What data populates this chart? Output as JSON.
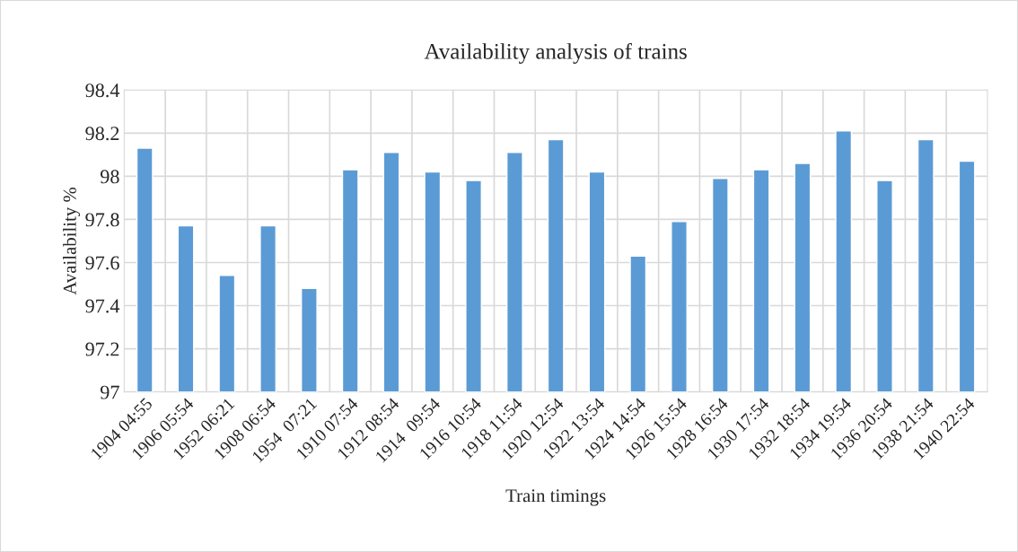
{
  "chart_data": {
    "type": "bar",
    "title": "Availability analysis of trains",
    "xlabel": "Train timings",
    "ylabel": "Availability %",
    "categories": [
      "1904 04:55",
      "1906 05:54",
      "1952 06:21",
      "1908 06:54",
      "1954  07:21",
      "1910 07:54",
      "1912 08:54",
      "1914  09:54",
      "1916 10:54",
      "1918 11:54",
      "1920 12:54",
      "1922 13:54",
      "1924 14:54",
      "1926 15:54",
      "1928 16:54",
      "1930 17:54",
      "1932 18:54",
      "1934 19:54",
      "1936 20:54",
      "1938 21:54",
      "1940 22:54"
    ],
    "values": [
      98.13,
      97.77,
      97.54,
      97.77,
      97.48,
      98.03,
      98.11,
      98.02,
      97.98,
      98.11,
      98.17,
      98.02,
      97.63,
      97.79,
      97.99,
      98.03,
      98.06,
      98.21,
      97.98,
      98.17,
      98.07
    ],
    "color": "#5b9bd5",
    "ylim": [
      97,
      98.4
    ],
    "yticks": [
      97,
      97.2,
      97.4,
      97.6,
      97.8,
      98,
      98.2,
      98.4
    ],
    "grid": true
  }
}
